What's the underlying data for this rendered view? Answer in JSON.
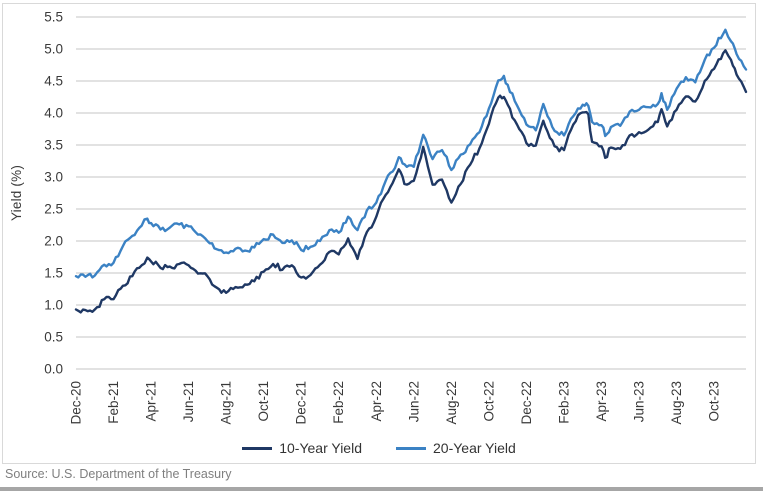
{
  "source_note": "Source: U.S. Department of the Treasury",
  "chart_data": {
    "type": "line",
    "title": "",
    "xlabel": "",
    "ylabel": "Yield (%)",
    "ylim": [
      0.0,
      5.5
    ],
    "ytick_step": 0.5,
    "x_range": [
      0,
      35.7
    ],
    "x_unit": "months since Dec-2020",
    "grid": true,
    "legend_position": "bottom-center",
    "x_tick_positions": [
      0,
      2,
      4,
      6,
      8,
      10,
      12,
      14,
      16,
      18,
      20,
      22,
      24,
      26,
      28,
      30,
      32,
      34
    ],
    "x_tick_labels": [
      "Dec-20",
      "Feb-21",
      "Apr-21",
      "Jun-21",
      "Aug-21",
      "Oct-21",
      "Dec-21",
      "Feb-22",
      "Apr-22",
      "Jun-22",
      "Aug-22",
      "Oct-22",
      "Dec-22",
      "Feb-23",
      "Apr-23",
      "Jun-23",
      "Aug-23",
      "Oct-23"
    ],
    "x": [
      0,
      0.5,
      1,
      1.5,
      2,
      2.5,
      3,
      3.5,
      3.8,
      4,
      4.5,
      5,
      5.5,
      6,
      6.5,
      7,
      7.5,
      8,
      8.5,
      9,
      9.5,
      10,
      10.5,
      11,
      11.5,
      12,
      12.5,
      13,
      13.5,
      14,
      14.5,
      15,
      15.5,
      16,
      16.5,
      17,
      17.2,
      17.5,
      18,
      18.5,
      19,
      19.5,
      20,
      20.5,
      21,
      21.5,
      22,
      22.5,
      22.8,
      23,
      23.5,
      24,
      24.5,
      24.9,
      25,
      25.5,
      26,
      26.5,
      27,
      27.3,
      27.5,
      28,
      28.2,
      28.5,
      29,
      29.5,
      30,
      30.5,
      31,
      31.2,
      31.5,
      32,
      32.5,
      33,
      33.5,
      34,
      34.6,
      34.9,
      35.2,
      35.7
    ],
    "series": [
      {
        "name": "10-Year Yield",
        "color": "#1F3864",
        "values": [
          0.93,
          0.92,
          0.93,
          1.09,
          1.09,
          1.3,
          1.45,
          1.62,
          1.74,
          1.68,
          1.58,
          1.6,
          1.64,
          1.62,
          1.49,
          1.45,
          1.27,
          1.19,
          1.28,
          1.32,
          1.37,
          1.52,
          1.64,
          1.55,
          1.62,
          1.43,
          1.47,
          1.63,
          1.83,
          1.79,
          2.04,
          1.72,
          2.14,
          2.38,
          2.72,
          2.99,
          3.12,
          2.89,
          2.94,
          3.47,
          2.88,
          2.96,
          2.6,
          2.89,
          3.19,
          3.45,
          3.83,
          4.24,
          4.25,
          4.13,
          3.82,
          3.53,
          3.49,
          3.88,
          3.79,
          3.48,
          3.42,
          3.82,
          4.01,
          3.98,
          3.55,
          3.48,
          3.3,
          3.46,
          3.44,
          3.65,
          3.7,
          3.74,
          3.86,
          4.06,
          3.79,
          4.05,
          4.26,
          4.18,
          4.5,
          4.69,
          4.98,
          4.83,
          4.6,
          4.33
        ]
      },
      {
        "name": "20-Year Yield",
        "color": "#3B82C4",
        "values": [
          1.45,
          1.44,
          1.46,
          1.63,
          1.66,
          1.92,
          2.08,
          2.24,
          2.35,
          2.28,
          2.18,
          2.21,
          2.26,
          2.23,
          2.1,
          2.0,
          1.87,
          1.82,
          1.88,
          1.85,
          1.9,
          2.03,
          2.1,
          1.97,
          2.01,
          1.86,
          1.91,
          2.0,
          2.17,
          2.13,
          2.38,
          2.17,
          2.48,
          2.6,
          2.94,
          3.14,
          3.31,
          3.2,
          3.16,
          3.66,
          3.28,
          3.42,
          3.11,
          3.35,
          3.51,
          3.7,
          4.07,
          4.51,
          4.58,
          4.44,
          4.12,
          3.82,
          3.73,
          4.14,
          4.06,
          3.72,
          3.65,
          3.95,
          4.13,
          4.11,
          3.86,
          3.81,
          3.64,
          3.78,
          3.8,
          4.02,
          4.05,
          4.09,
          4.14,
          4.31,
          4.05,
          4.38,
          4.56,
          4.48,
          4.83,
          5.02,
          5.3,
          5.12,
          4.92,
          4.68
        ]
      }
    ]
  }
}
